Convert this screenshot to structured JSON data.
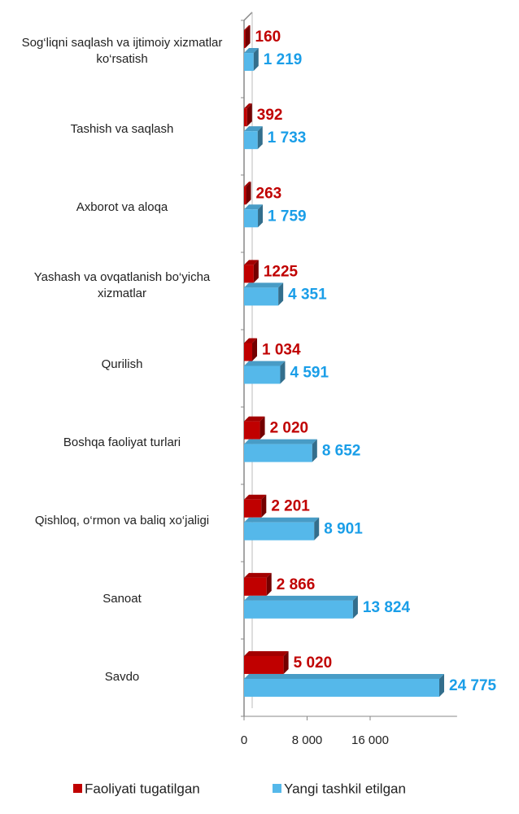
{
  "chart_data": {
    "type": "bar3d_horizontal",
    "categories": [
      "Sog‘liqni saqlash va ijtimoiy xizmatlar ko‘rsatish",
      "Tashish va saqlash",
      "Axborot va aloqa",
      "Yashash va ovqatlanish bo‘yicha xizmatlar",
      "Qurilish",
      "Boshqa faoliyat turlari",
      "Qishloq, o‘rmon va baliq xo‘jaligi",
      "Sanoat",
      "Savdo"
    ],
    "series": [
      {
        "name": "Faoliyati tugatilgan",
        "color": "#c00000",
        "values": [
          160,
          392,
          263,
          1225,
          1034,
          2020,
          2201,
          2866,
          5020
        ],
        "value_labels": [
          "160",
          "392",
          "263",
          "1225",
          "1 034",
          "2 020",
          "2 201",
          "2 866",
          "5 020"
        ]
      },
      {
        "name": "Yangi tashkil etilgan",
        "color": "#55b8ea",
        "values": [
          1219,
          1733,
          1759,
          4351,
          4591,
          8652,
          8901,
          13824,
          24775
        ],
        "value_labels": [
          "1 219",
          "1 733",
          "1 759",
          "4 351",
          "4 591",
          "8 652",
          "8 901",
          "13 824",
          "24 775"
        ]
      }
    ],
    "xlim": [
      0,
      26000
    ],
    "xticks": [
      0,
      {
        "value": 8000,
        "label": "8 000"
      },
      {
        "value": 16000,
        "label": "16 000"
      }
    ],
    "legend": "bottom"
  }
}
